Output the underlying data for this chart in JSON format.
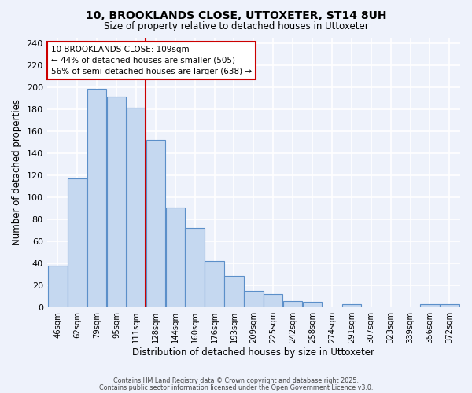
{
  "title1": "10, BROOKLANDS CLOSE, UTTOXETER, ST14 8UH",
  "title2": "Size of property relative to detached houses in Uttoxeter",
  "xlabel": "Distribution of detached houses by size in Uttoxeter",
  "ylabel": "Number of detached properties",
  "bar_labels": [
    "46sqm",
    "62sqm",
    "79sqm",
    "95sqm",
    "111sqm",
    "128sqm",
    "144sqm",
    "160sqm",
    "176sqm",
    "193sqm",
    "209sqm",
    "225sqm",
    "242sqm",
    "258sqm",
    "274sqm",
    "291sqm",
    "307sqm",
    "323sqm",
    "339sqm",
    "356sqm",
    "372sqm"
  ],
  "bar_values": [
    38,
    117,
    198,
    191,
    181,
    152,
    91,
    72,
    42,
    29,
    15,
    12,
    6,
    5,
    0,
    3,
    0,
    0,
    0,
    3,
    3
  ],
  "bar_color": "#c5d8f0",
  "bar_edge_color": "#5b8fc9",
  "background_color": "#eef2fb",
  "grid_color": "#ffffff",
  "vline_color": "#cc0000",
  "annotation_text": "10 BROOKLANDS CLOSE: 109sqm\n← 44% of detached houses are smaller (505)\n56% of semi-detached houses are larger (638) →",
  "annotation_box_color": "#ffffff",
  "annotation_box_edge_color": "#cc0000",
  "ylim": [
    0,
    245
  ],
  "yticks": [
    0,
    20,
    40,
    60,
    80,
    100,
    120,
    140,
    160,
    180,
    200,
    220,
    240
  ],
  "footer1": "Contains HM Land Registry data © Crown copyright and database right 2025.",
  "footer2": "Contains public sector information licensed under the Open Government Licence v3.0."
}
